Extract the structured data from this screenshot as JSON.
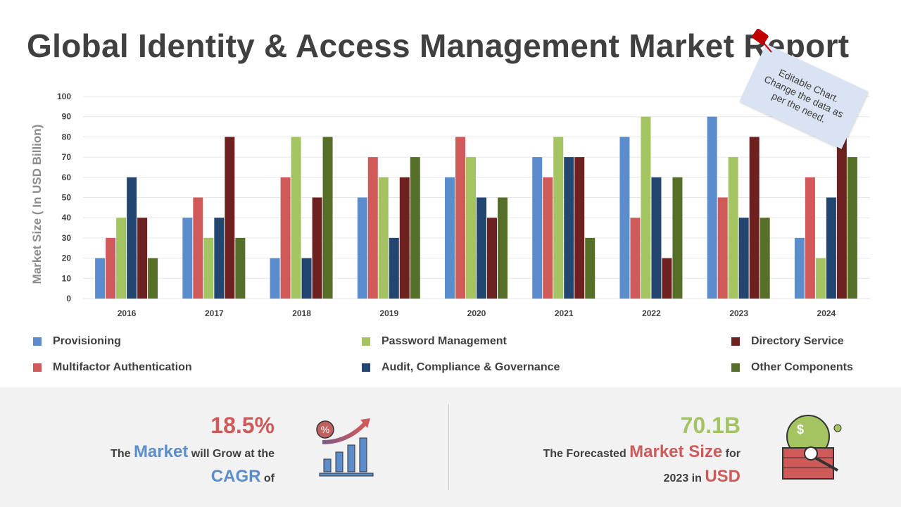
{
  "title": "Global Identity & Access Management Market Report",
  "note": {
    "line1": "Editable Chart.",
    "line2": "Change the data as",
    "line3": "per the need."
  },
  "chart_data": {
    "type": "bar",
    "title": "",
    "xlabel": "",
    "ylabel": "Market Size  ( In USD Billion)",
    "ylim": [
      0,
      100
    ],
    "yticks": [
      0,
      10,
      20,
      30,
      40,
      50,
      60,
      70,
      80,
      90,
      100
    ],
    "grid": true,
    "legend_position": "bottom",
    "categories": [
      "2016",
      "2017",
      "2018",
      "2019",
      "2020",
      "2021",
      "2022",
      "2023",
      "2024"
    ],
    "series": [
      {
        "name": "Provisioning",
        "color": "#5b8ccb",
        "values": [
          20,
          40,
          20,
          50,
          60,
          70,
          80,
          90,
          30
        ]
      },
      {
        "name": "Multifactor Authentication",
        "color": "#d05a5a",
        "values": [
          30,
          50,
          60,
          70,
          80,
          60,
          40,
          50,
          60
        ]
      },
      {
        "name": "Password Management",
        "color": "#a4c462",
        "values": [
          40,
          30,
          80,
          60,
          70,
          80,
          90,
          70,
          20
        ]
      },
      {
        "name": "Audit, Compliance &  Governance",
        "color": "#234670",
        "values": [
          60,
          40,
          20,
          30,
          50,
          70,
          60,
          40,
          50
        ]
      },
      {
        "name": "Directory Service",
        "color": "#6e2220",
        "values": [
          40,
          80,
          50,
          60,
          40,
          70,
          20,
          80,
          80
        ]
      },
      {
        "name": "Other Components",
        "color": "#566f28",
        "values": [
          20,
          30,
          80,
          70,
          50,
          30,
          60,
          40,
          70
        ]
      }
    ]
  },
  "stats": {
    "cagr_value": "18.5%",
    "cagr_t1": "The ",
    "cagr_hl1": "Market",
    "cagr_t2": " will Grow at the",
    "cagr_hl2": "CAGR",
    "cagr_t3": " of",
    "size_value": "70.1B",
    "size_t1": "The Forecasted ",
    "size_hl1": "Market Size",
    "size_t2": " for",
    "size_t3": "2023 in ",
    "size_hl2": "USD"
  },
  "colors": {
    "blue": "#5b8ccb",
    "red": "#d05a5a",
    "green": "#a4c462"
  }
}
